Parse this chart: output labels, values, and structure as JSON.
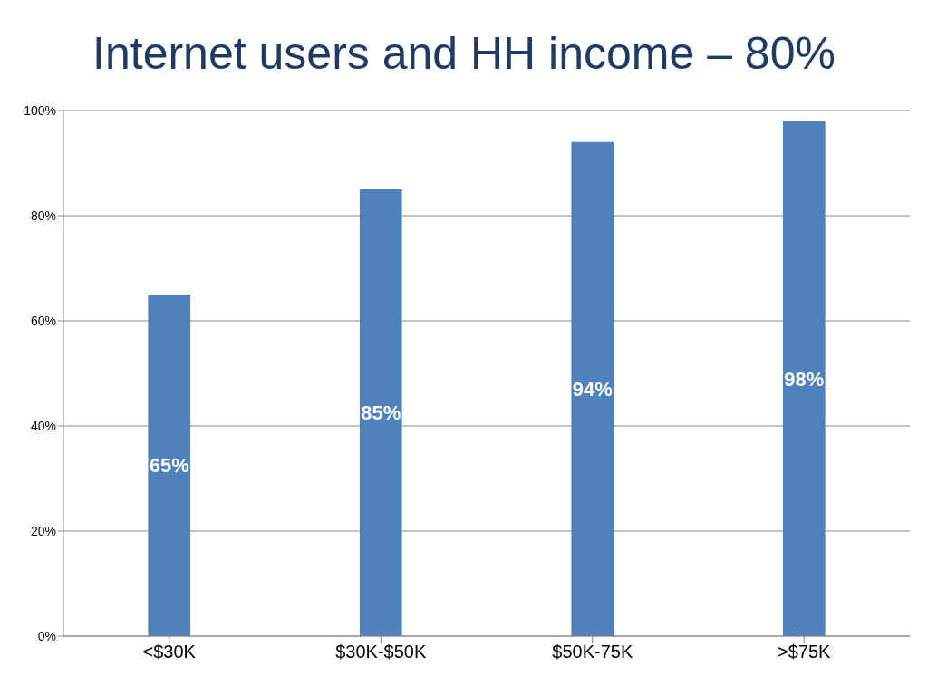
{
  "chart_data": {
    "type": "bar",
    "title": "Internet users and HH income – 80%",
    "categories": [
      "<$30K",
      "$30K-$50K",
      "$50K-75K",
      ">$75K"
    ],
    "values": [
      65,
      85,
      94,
      98
    ],
    "value_labels": [
      "65%",
      "85%",
      "94%",
      "98%"
    ],
    "color": "#4f81bd",
    "ylim": [
      0,
      100
    ],
    "yticks": [
      {
        "value": 0,
        "label": "0%"
      },
      {
        "value": 20,
        "label": "20%"
      },
      {
        "value": 40,
        "label": "40%"
      },
      {
        "value": 60,
        "label": "60%"
      },
      {
        "value": 80,
        "label": "80%"
      },
      {
        "value": 100,
        "label": "100%"
      }
    ],
    "grid": "y"
  }
}
